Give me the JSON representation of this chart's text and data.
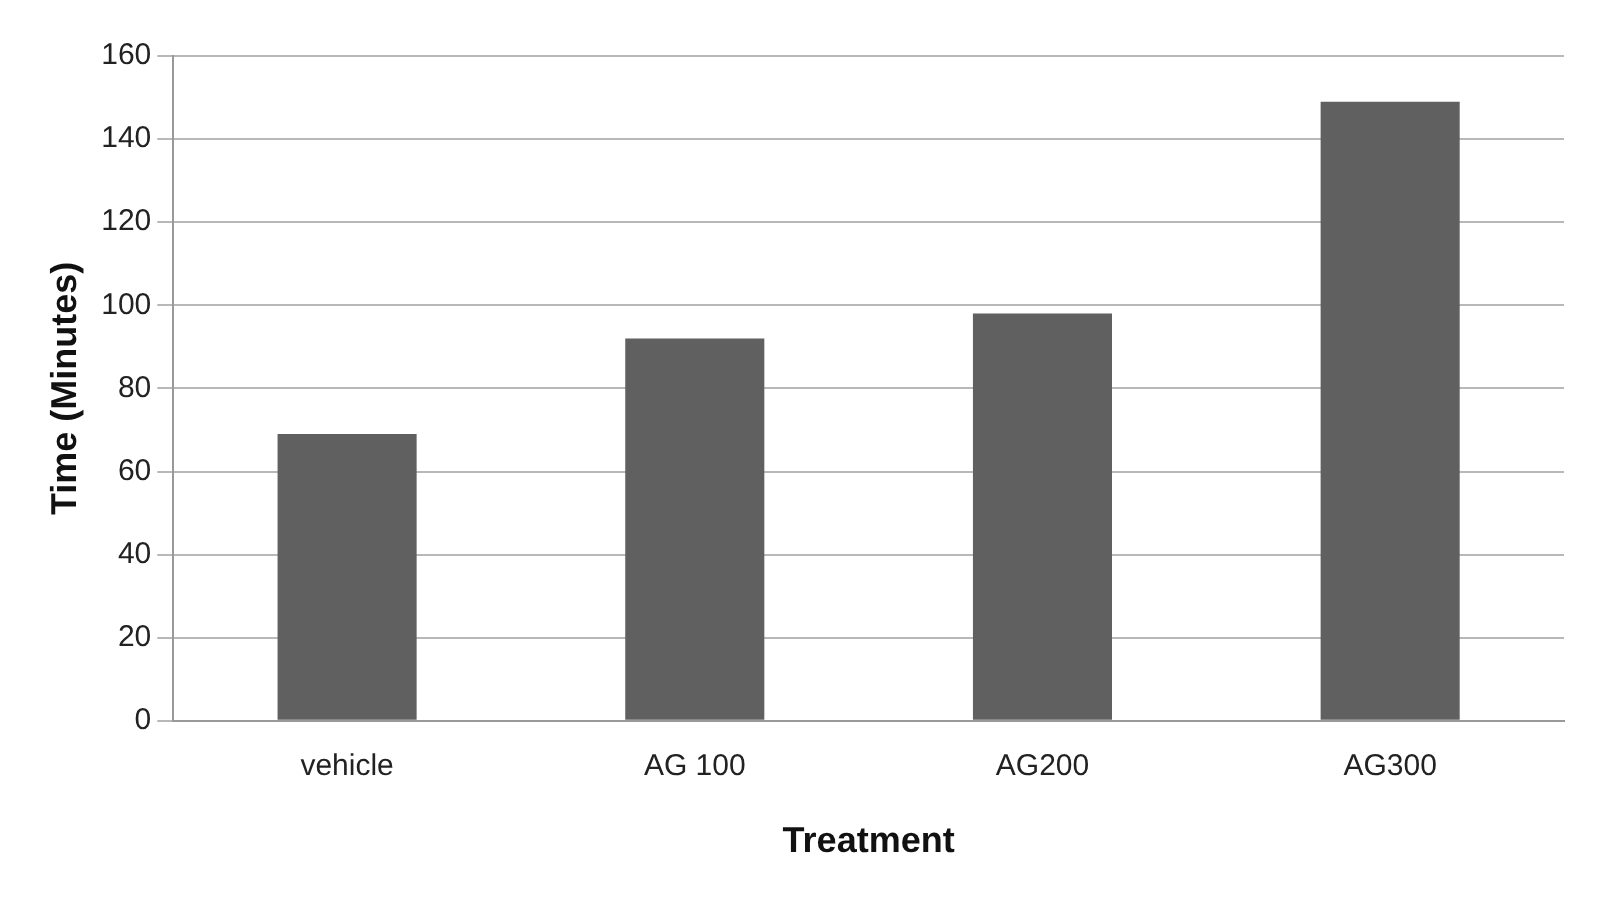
{
  "chart_data": {
    "type": "bar",
    "xlabel": "Treatment",
    "ylabel": "Time (Minutes)",
    "categories": [
      "vehicle",
      "AG 100",
      "AG200",
      "AG300"
    ],
    "values": [
      69,
      92,
      98,
      149
    ],
    "color": "#606060",
    "ylim": [
      0,
      160
    ],
    "yticks": [
      0,
      20,
      40,
      60,
      80,
      100,
      120,
      140,
      160
    ],
    "grid": "y"
  }
}
